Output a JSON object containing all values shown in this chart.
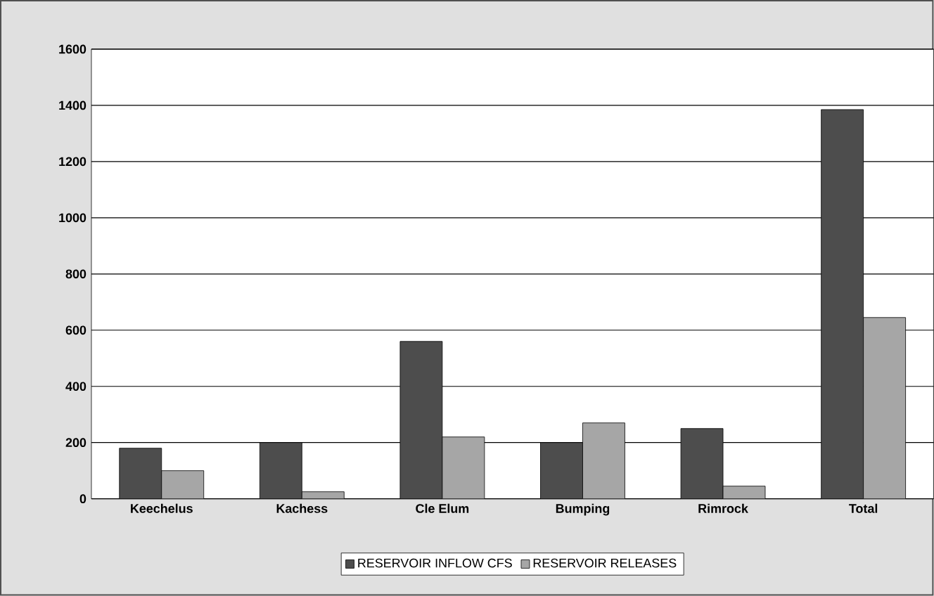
{
  "chart_data": {
    "type": "bar",
    "categories": [
      "Keechelus",
      "Kachess",
      "Cle Elum",
      "Bumping",
      "Rimrock",
      "Total"
    ],
    "series": [
      {
        "name": "RESERVOIR INFLOW CFS",
        "color": "#4d4d4d",
        "values": [
          180,
          200,
          560,
          200,
          250,
          1385
        ]
      },
      {
        "name": "RESERVOIR RELEASES",
        "color": "#a6a6a6",
        "values": [
          100,
          25,
          220,
          270,
          45,
          645
        ]
      }
    ],
    "ylim": [
      0,
      1600
    ],
    "yticks": [
      0,
      200,
      400,
      600,
      800,
      1000,
      1200,
      1400,
      1600
    ],
    "grid": "y",
    "legend": "bottom"
  }
}
